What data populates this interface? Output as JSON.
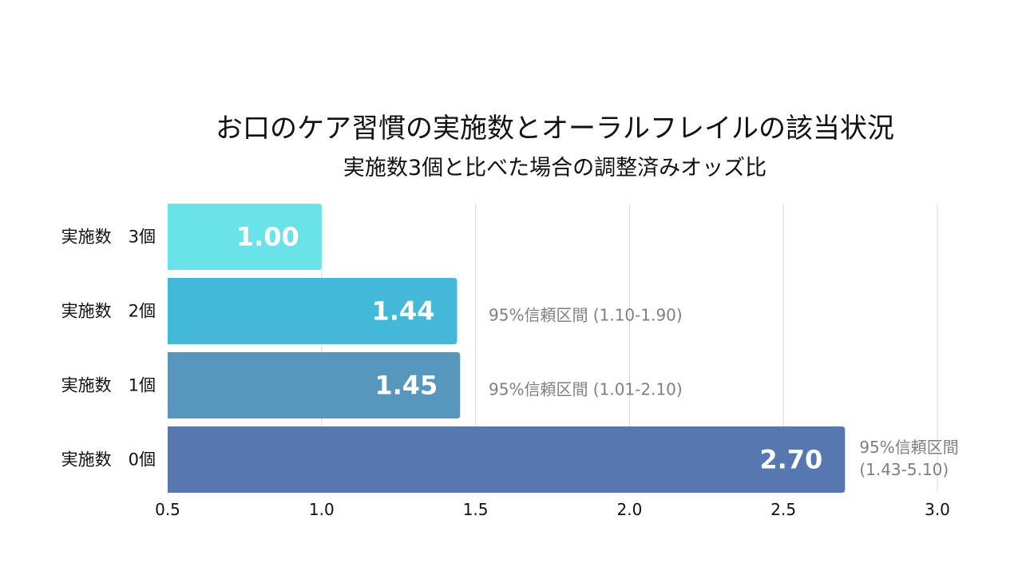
{
  "chart_data": {
    "type": "bar",
    "orientation": "horizontal",
    "title": "お口のケア習慣の実施数とオーラルフレイルの該当状況",
    "subtitle": "実施数3個と比べた場合の調整済みオッズ比",
    "categories": [
      "実施数　3個",
      "実施数　2個",
      "実施数　1個",
      "実施数　0個"
    ],
    "values": [
      1.0,
      1.44,
      1.45,
      2.7
    ],
    "value_labels": [
      "1.00",
      "1.44",
      "1.45",
      "2.70"
    ],
    "ci_labels": [
      [],
      [
        "95%信頼区間 (1.10-1.90)"
      ],
      [
        "95%信頼区間 (1.01-2.10)"
      ],
      [
        "95%信頼区間",
        "(1.43-5.10)"
      ]
    ],
    "bar_colors": [
      "#6ae3e8",
      "#43b8d8",
      "#5897bd",
      "#5677af"
    ],
    "xlim": [
      0.5,
      3.0
    ],
    "xticks": [
      "0.5",
      "1.0",
      "1.5",
      "2.0",
      "2.5",
      "3.0"
    ],
    "grid": true,
    "xlabel": "",
    "ylabel": ""
  }
}
